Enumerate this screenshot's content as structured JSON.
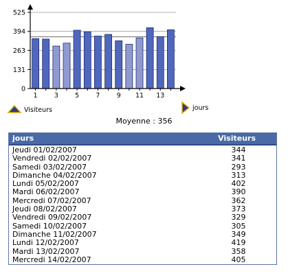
{
  "chart_data": {
    "type": "bar",
    "categories": [
      "1",
      "2",
      "3",
      "4",
      "5",
      "6",
      "7",
      "8",
      "9",
      "10",
      "11",
      "12",
      "13",
      "14"
    ],
    "values": [
      344,
      341,
      293,
      313,
      402,
      390,
      362,
      373,
      329,
      305,
      349,
      419,
      358,
      405
    ],
    "x_tick_labels": [
      "1",
      "3",
      "5",
      "7",
      "9",
      "11",
      "13"
    ],
    "y_ticks": [
      "0",
      "131",
      "263",
      "394",
      "525"
    ],
    "ylim": [
      0,
      525
    ],
    "average": 356,
    "colors": {
      "bar_dark": "#4f68bd",
      "bar_light": "#8f9ad1",
      "bar_edge": "#1f2b6b",
      "axis": "#000000"
    },
    "bar_styles": [
      "dark",
      "dark",
      "light",
      "light",
      "dark",
      "dark",
      "dark",
      "dark",
      "dark",
      "light",
      "light",
      "dark",
      "dark",
      "dark"
    ],
    "legend": {
      "series_label": "Visiteurs",
      "series_icon": "up-triangle-icon",
      "x_label": "jours",
      "x_icon": "right-triangle-icon"
    }
  },
  "summary": {
    "average_text": "Moyenne : 356"
  },
  "table": {
    "headers": {
      "day": "jours",
      "visitors": "Visiteurs"
    },
    "header_color": "#4a6aa5",
    "rows": [
      {
        "day": "Jeudi 01/02/2007",
        "visitors": "344"
      },
      {
        "day": "Vendredi 02/02/2007",
        "visitors": "341"
      },
      {
        "day": "Samedi 03/02/2007",
        "visitors": "293"
      },
      {
        "day": "Dimanche 04/02/2007",
        "visitors": "313"
      },
      {
        "day": "Lundi 05/02/2007",
        "visitors": "402"
      },
      {
        "day": "Mardi 06/02/2007",
        "visitors": "390"
      },
      {
        "day": "Mercredi 07/02/2007",
        "visitors": "362"
      },
      {
        "day": "Jeudi 08/02/2007",
        "visitors": "373"
      },
      {
        "day": "Vendredi 09/02/2007",
        "visitors": "329"
      },
      {
        "day": "Samedi 10/02/2007",
        "visitors": "305"
      },
      {
        "day": "Dimanche 11/02/2007",
        "visitors": "349"
      },
      {
        "day": "Lundi 12/02/2007",
        "visitors": "419"
      },
      {
        "day": "Mardi 13/02/2007",
        "visitors": "358"
      },
      {
        "day": "Mercredi 14/02/2007",
        "visitors": "405"
      }
    ]
  }
}
